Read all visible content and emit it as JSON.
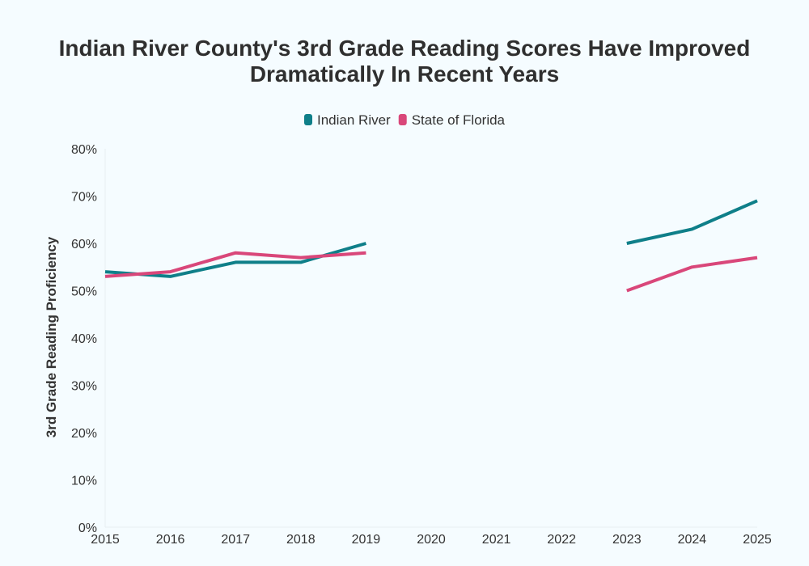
{
  "chart_data": {
    "type": "line",
    "title_lines": [
      "Indian River County's 3rd Grade Reading Scores Have Improved",
      "Dramatically In Recent Years"
    ],
    "xlabel": "",
    "ylabel": "3rd Grade Reading Proficiency",
    "x": [
      2015,
      2016,
      2017,
      2018,
      2019,
      2020,
      2021,
      2022,
      2023,
      2024,
      2025
    ],
    "x_tick_labels": [
      "2015",
      "2016",
      "2017",
      "2018",
      "2019",
      "2020",
      "2021",
      "2022",
      "2023",
      "2024",
      "2025"
    ],
    "y_ticks": [
      0,
      10,
      20,
      30,
      40,
      50,
      60,
      70,
      80
    ],
    "y_tick_labels": [
      "0%",
      "10%",
      "20%",
      "30%",
      "40%",
      "50%",
      "60%",
      "70%",
      "80%"
    ],
    "ylim": [
      0,
      80
    ],
    "xlim": [
      2015,
      2025
    ],
    "grid": false,
    "legend_position": "top-center",
    "series": [
      {
        "name": "Indian River",
        "color": "#0f7f89",
        "values": [
          54,
          53,
          56,
          56,
          60,
          null,
          null,
          null,
          60,
          63,
          69
        ]
      },
      {
        "name": "State of Florida",
        "color": "#d9477a",
        "values": [
          53,
          54,
          58,
          57,
          58,
          null,
          null,
          null,
          50,
          55,
          57
        ]
      }
    ]
  }
}
